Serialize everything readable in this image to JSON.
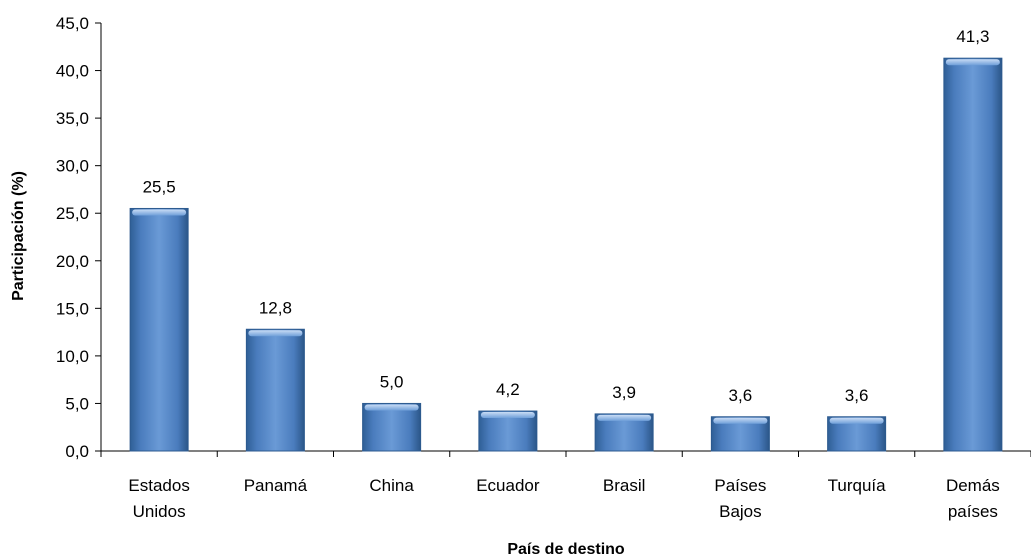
{
  "chart_data": {
    "type": "bar",
    "categories": [
      [
        "Estados",
        "Unidos"
      ],
      [
        "Panamá"
      ],
      [
        "China"
      ],
      [
        "Ecuador"
      ],
      [
        "Brasil"
      ],
      [
        "Países",
        "Bajos"
      ],
      [
        "Turquía"
      ],
      [
        "Demás",
        "países"
      ]
    ],
    "values": [
      25.5,
      12.8,
      5.0,
      4.2,
      3.9,
      3.6,
      3.6,
      41.3
    ],
    "data_labels": [
      "25,5",
      "12,8",
      "5,0",
      "4,2",
      "3,9",
      "3,6",
      "3,6",
      "41,3"
    ],
    "title": "",
    "xlabel": "País de destino",
    "ylabel": "Participación  (%)",
    "ylim": [
      0,
      45
    ],
    "yticks": [
      0,
      5,
      10,
      15,
      20,
      25,
      30,
      35,
      40,
      45
    ],
    "ytick_labels": [
      "0,0",
      "5,0",
      "10,0",
      "15,0",
      "20,0",
      "25,0",
      "30,0",
      "35,0",
      "40,0",
      "45,0"
    ],
    "grid": false,
    "legend": "none",
    "bar_color": "#4f81bd",
    "bar_highlight": "#a7c4ea",
    "bar_shadow": "#2c5a8f"
  }
}
